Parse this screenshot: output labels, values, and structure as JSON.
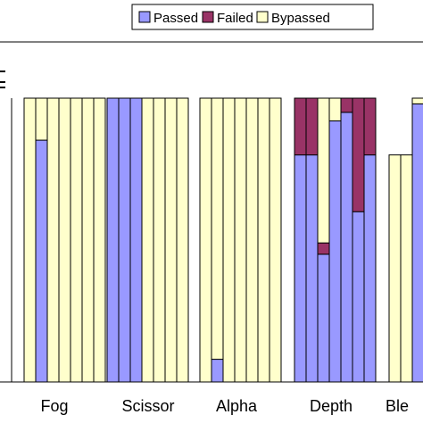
{
  "colors": {
    "passed": "#9999ff",
    "failed": "#993366",
    "bypassed": "#ffffcc",
    "stroke": "#000000"
  },
  "chart_data": {
    "type": "bar",
    "stacked": true,
    "normalized": true,
    "ylim": [
      0,
      1
    ],
    "legend": {
      "placement": "top-right",
      "entries": [
        "Passed",
        "Failed",
        "Bypassed"
      ]
    },
    "series_names": [
      "Passed",
      "Failed",
      "Bypassed"
    ],
    "groups": [
      {
        "label": "",
        "bars": []
      },
      {
        "label": "Fog",
        "bars": [
          [
            0.0,
            0.0,
            1.0
          ],
          [
            0.852,
            0.0,
            0.148
          ],
          [
            0.0,
            0.0,
            1.0
          ],
          [
            0.0,
            0.0,
            1.0
          ],
          [
            0.0,
            0.0,
            1.0
          ],
          [
            0.0,
            0.0,
            1.0
          ],
          [
            0.0,
            0.0,
            1.0
          ]
        ]
      },
      {
        "label": "Scissor",
        "bars": [
          [
            1.0,
            0.0,
            0.0
          ],
          [
            1.0,
            0.0,
            0.0
          ],
          [
            1.0,
            0.0,
            0.0
          ],
          [
            0.0,
            0.0,
            1.0
          ],
          [
            0.0,
            0.0,
            1.0
          ],
          [
            0.0,
            0.0,
            1.0
          ],
          [
            0.0,
            0.0,
            1.0
          ]
        ]
      },
      {
        "label": "Alpha",
        "bars": [
          [
            0.0,
            0.0,
            1.0
          ],
          [
            0.08,
            0.0,
            0.92
          ],
          [
            0.0,
            0.0,
            1.0
          ],
          [
            0.0,
            0.0,
            1.0
          ],
          [
            0.0,
            0.0,
            1.0
          ],
          [
            0.0,
            0.0,
            1.0
          ],
          [
            0.0,
            0.0,
            1.0
          ]
        ]
      },
      {
        "label": "Depth",
        "bars": [
          [
            0.8,
            0.2,
            0.0
          ],
          [
            0.8,
            0.2,
            0.0
          ],
          [
            0.45,
            0.04,
            0.51
          ],
          [
            0.92,
            0.0,
            0.08
          ],
          [
            0.95,
            0.05,
            0.0
          ],
          [
            0.6,
            0.4,
            0.0
          ],
          [
            0.8,
            0.2,
            0.0
          ]
        ]
      },
      {
        "label": "Ble",
        "bars": [
          [
            0.0,
            0.0,
            0.8
          ],
          [
            0.0,
            0.0,
            0.8
          ],
          [
            0.98,
            0.0,
            0.02
          ]
        ]
      }
    ]
  }
}
